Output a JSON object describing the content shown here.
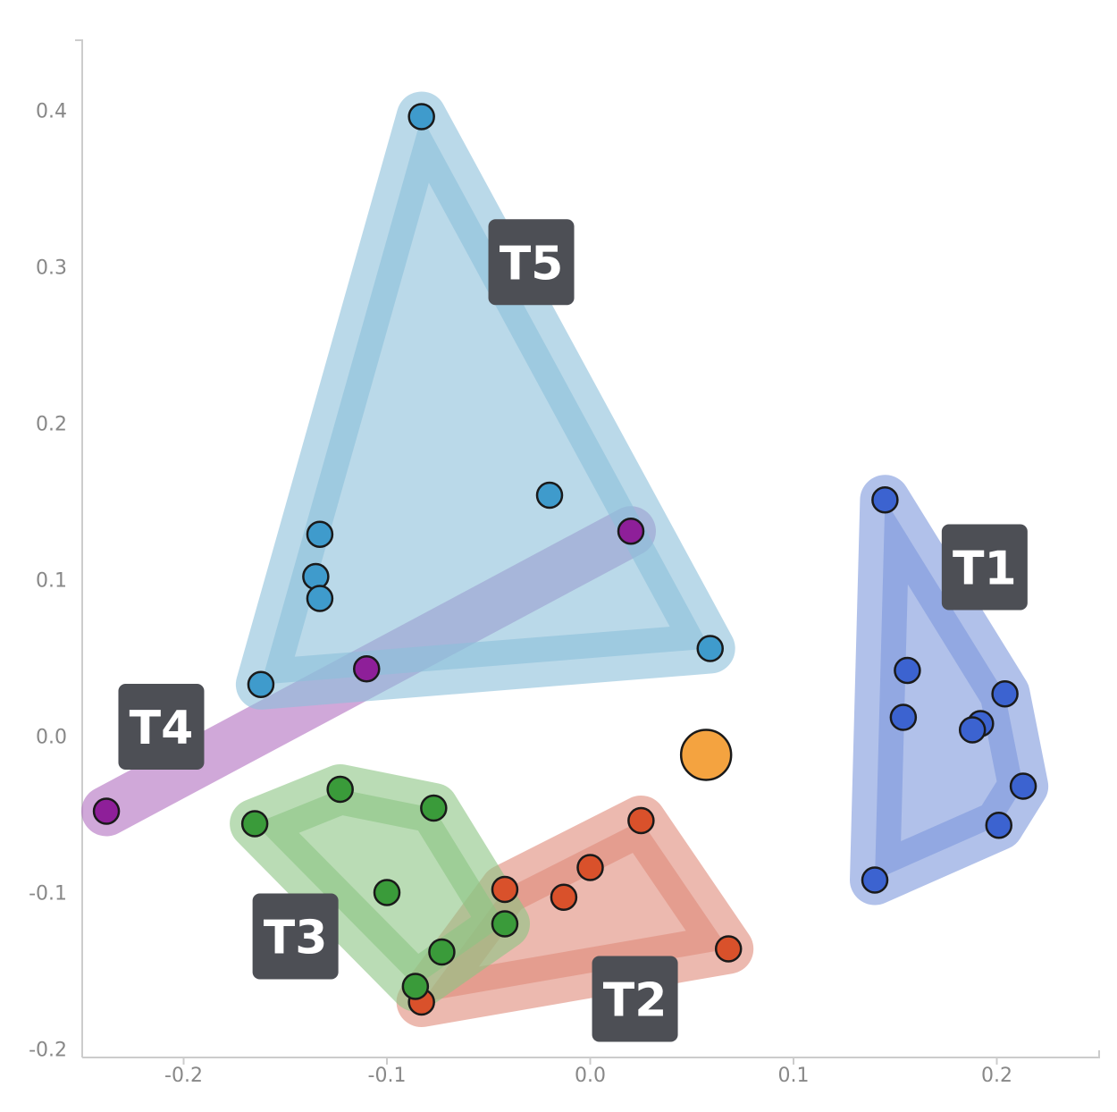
{
  "chart_data": {
    "type": "scatter",
    "xlim": [
      -0.25,
      0.25
    ],
    "ylim": [
      -0.2,
      0.4
    ],
    "x_ticks": [
      "-0.2",
      "-0.1",
      "0.0",
      "0.1",
      "0.2"
    ],
    "x_tick_values": [
      -0.2,
      -0.1,
      0.0,
      0.1,
      0.2
    ],
    "y_ticks": [
      "0.4",
      "0.3",
      "0.2",
      "0.1",
      "0.0",
      "-0.1",
      "-0.2"
    ],
    "y_tick_values": [
      0.4,
      0.3,
      0.2,
      0.1,
      0.0,
      -0.1,
      -0.2
    ],
    "grid": false,
    "groups": [
      {
        "name": "T1",
        "point_color": "#3c63d0",
        "hull_color": "#7d98dc",
        "points": [
          [
            0.145,
            0.151
          ],
          [
            0.156,
            0.042
          ],
          [
            0.154,
            0.012
          ],
          [
            0.192,
            0.008
          ],
          [
            0.188,
            0.004
          ],
          [
            0.204,
            0.027
          ],
          [
            0.213,
            -0.032
          ],
          [
            0.201,
            -0.057
          ],
          [
            0.14,
            -0.092
          ]
        ],
        "hull": [
          [
            0.145,
            0.151
          ],
          [
            0.204,
            0.027
          ],
          [
            0.213,
            -0.032
          ],
          [
            0.201,
            -0.057
          ],
          [
            0.14,
            -0.092
          ]
        ]
      },
      {
        "name": "T2",
        "point_color": "#d9512b",
        "hull_color": "#e08a7a",
        "points": [
          [
            0.025,
            -0.054
          ],
          [
            0.0,
            -0.084
          ],
          [
            -0.013,
            -0.103
          ],
          [
            -0.042,
            -0.098
          ],
          [
            0.068,
            -0.136
          ],
          [
            -0.083,
            -0.17
          ]
        ],
        "hull": [
          [
            0.025,
            -0.054
          ],
          [
            0.068,
            -0.136
          ],
          [
            -0.083,
            -0.17
          ],
          [
            -0.042,
            -0.098
          ]
        ]
      },
      {
        "name": "T3",
        "point_color": "#3a9b3a",
        "hull_color": "#8cc583",
        "points": [
          [
            -0.123,
            -0.034
          ],
          [
            -0.077,
            -0.046
          ],
          [
            -0.165,
            -0.056
          ],
          [
            -0.1,
            -0.1
          ],
          [
            -0.042,
            -0.12
          ],
          [
            -0.073,
            -0.138
          ],
          [
            -0.086,
            -0.16
          ]
        ],
        "hull": [
          [
            -0.123,
            -0.034
          ],
          [
            -0.077,
            -0.046
          ],
          [
            -0.042,
            -0.12
          ],
          [
            -0.086,
            -0.16
          ],
          [
            -0.165,
            -0.056
          ]
        ]
      },
      {
        "name": "T4",
        "point_color": "#8e1f99",
        "hull_color": "#b06ec0",
        "points": [
          [
            -0.238,
            -0.048
          ],
          [
            -0.11,
            0.043
          ],
          [
            0.02,
            0.131
          ]
        ],
        "hull": [
          [
            -0.238,
            -0.048
          ],
          [
            0.02,
            0.131
          ]
        ]
      },
      {
        "name": "T5",
        "point_color": "#3f9bcc",
        "hull_color": "#8cbfdb",
        "points": [
          [
            -0.083,
            0.396
          ],
          [
            -0.02,
            0.154
          ],
          [
            -0.133,
            0.129
          ],
          [
            -0.135,
            0.102
          ],
          [
            -0.133,
            0.088
          ],
          [
            -0.162,
            0.033
          ],
          [
            0.059,
            0.056
          ]
        ],
        "hull": [
          [
            -0.083,
            0.396
          ],
          [
            0.059,
            0.056
          ],
          [
            -0.162,
            0.033
          ]
        ]
      }
    ],
    "highlight_point": {
      "x": 0.057,
      "y": -0.012,
      "color": "#f4a340"
    },
    "labels": [
      {
        "text": "T5",
        "x": -0.029,
        "y": 0.303
      },
      {
        "text": "T1",
        "x": 0.194,
        "y": 0.108
      },
      {
        "text": "T4",
        "x": -0.211,
        "y": 0.006
      },
      {
        "text": "T3",
        "x": -0.145,
        "y": -0.128
      },
      {
        "text": "T2",
        "x": 0.022,
        "y": -0.168
      }
    ]
  }
}
